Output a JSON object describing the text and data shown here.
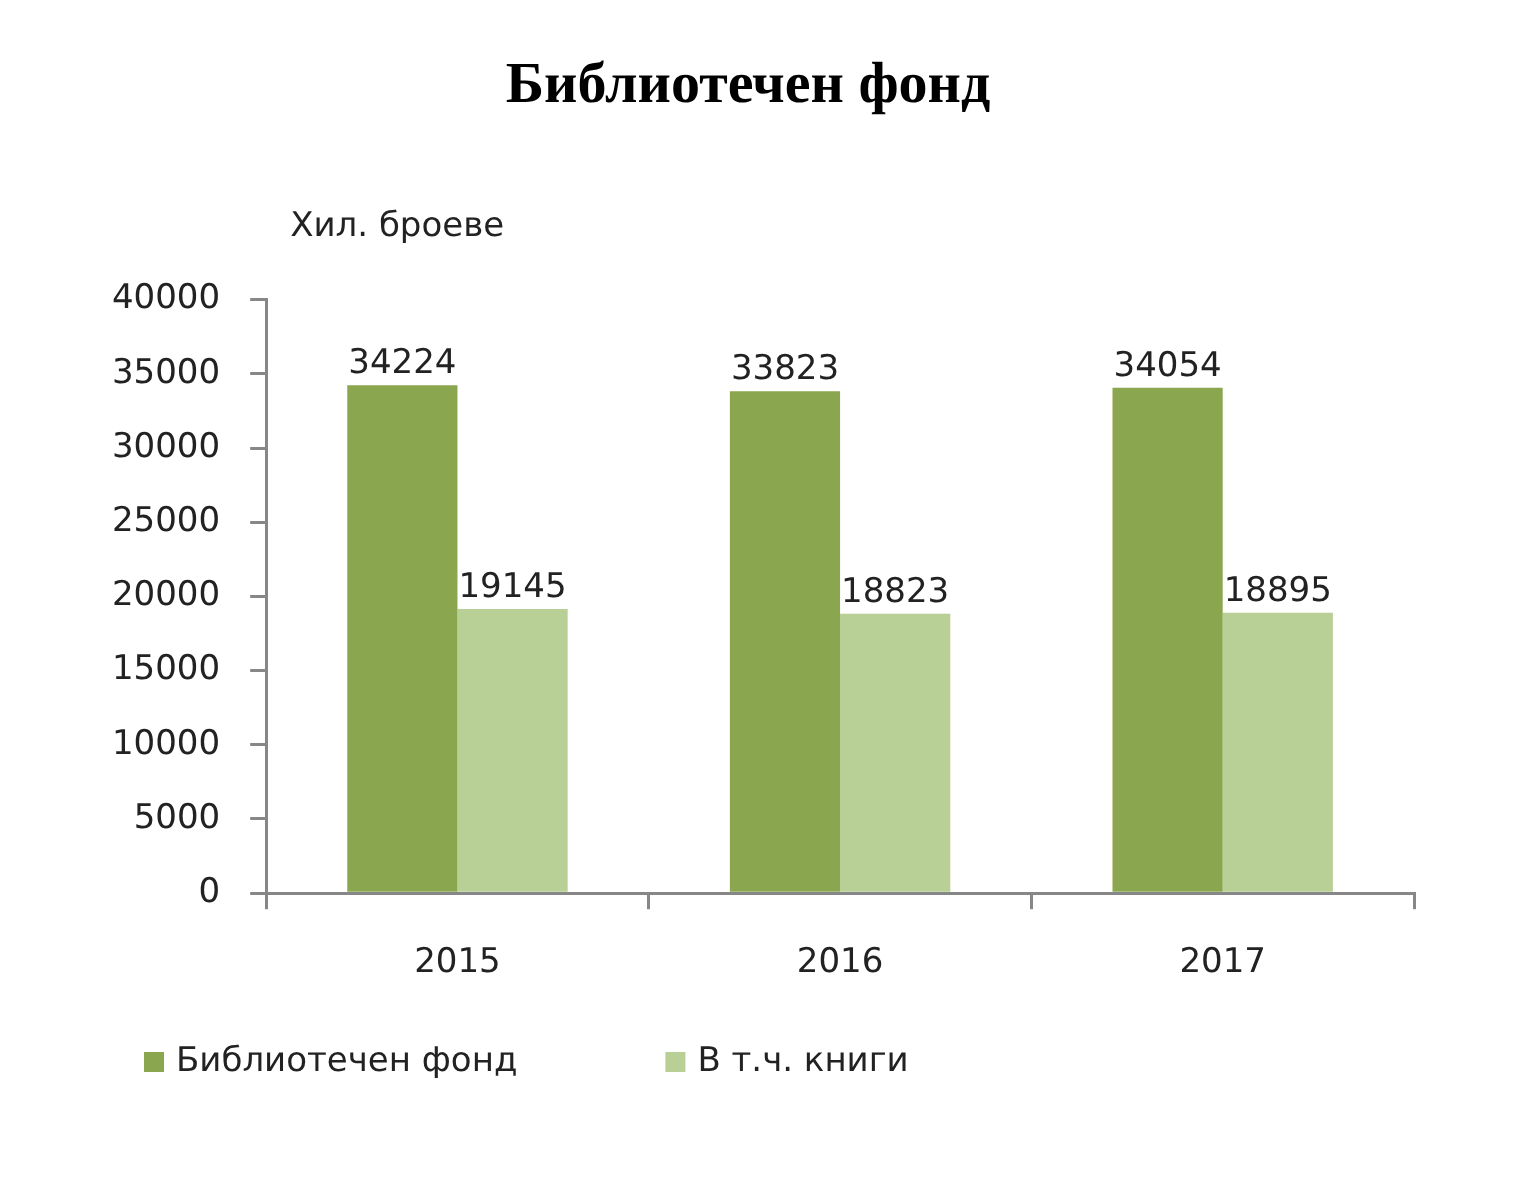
{
  "chart_data": {
    "type": "bar",
    "title": "Библиотечен фонд",
    "ylabel": "Хил. броеве",
    "categories": [
      "2015",
      "2016",
      "2017"
    ],
    "series": [
      {
        "name": "Библиотечен фонд",
        "color": "#8aa64e",
        "values": [
          34224,
          33823,
          34054
        ]
      },
      {
        "name": "В т.ч. книги",
        "color": "#b8cf95",
        "values": [
          19145,
          18823,
          18895
        ]
      }
    ],
    "ylim": [
      0,
      40000
    ],
    "yticks": [
      0,
      5000,
      10000,
      15000,
      20000,
      25000,
      30000,
      35000,
      40000
    ],
    "data_labels": true,
    "grid": false,
    "legend": "bottom left"
  }
}
